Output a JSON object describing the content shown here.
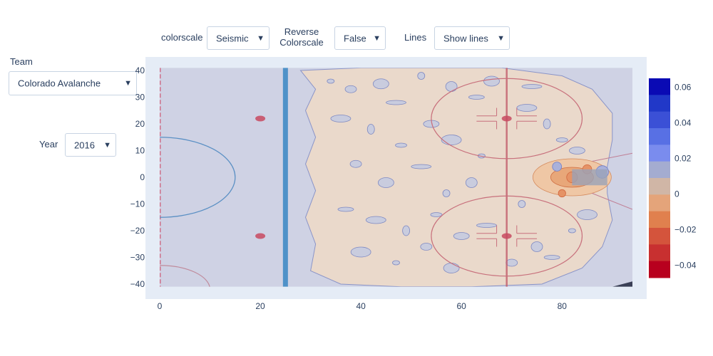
{
  "controls": {
    "team": {
      "label": "Team",
      "value": "Colorado Avalanche"
    },
    "year": {
      "label": "Year",
      "value": "2016"
    },
    "colorscale": {
      "label": "colorscale",
      "value": "Seismic"
    },
    "reverse": {
      "label_line1": "Reverse",
      "label_line2": "Colorscale",
      "value": "False"
    },
    "lines": {
      "label": "Lines",
      "value": "Show lines"
    },
    "caret": "▼"
  },
  "chart_data": {
    "type": "contour",
    "title": "",
    "xlabel": "",
    "ylabel": "",
    "xlim": [
      -3,
      94
    ],
    "ylim": [
      -43,
      43
    ],
    "x_ticks": [
      0,
      20,
      40,
      60,
      80
    ],
    "y_ticks": [
      40,
      30,
      20,
      10,
      0,
      -10,
      -20,
      -30,
      -40
    ],
    "y_tick_labels": [
      "40",
      "30",
      "20",
      "10",
      "0",
      "−10",
      "−20",
      "−30",
      "−40"
    ],
    "background_color": "#e5ecf6",
    "colorbar": {
      "range": [
        -0.047,
        0.065
      ],
      "ticks": [
        0.06,
        0.04,
        0.02,
        0,
        -0.02,
        -0.04
      ],
      "tick_labels": [
        "0.06",
        "0.04",
        "0.02",
        "0",
        "−0.02",
        "−0.04"
      ],
      "colors": [
        "#0a0ab4",
        "#2138c8",
        "#3b50d6",
        "#5870e4",
        "#7a8cee",
        "#a4acd0",
        "#d0b6a6",
        "#e4a47a",
        "#e0804e",
        "#d4543c",
        "#c83030",
        "#b8001e"
      ]
    },
    "rink": {
      "goal_line_x": 0,
      "blue_line_x": 25,
      "red_line_x": 69,
      "crease_x": 89,
      "faceoff_circles": [
        {
          "x": 69,
          "y": 22
        },
        {
          "x": 69,
          "y": -22
        }
      ],
      "faceoff_dots": [
        {
          "x": 20,
          "y": 22
        },
        {
          "x": 20,
          "y": -22
        },
        {
          "x": 69,
          "y": 22
        },
        {
          "x": 69,
          "y": -22
        }
      ],
      "center_circle": {
        "x": 0,
        "y": 0,
        "r": 15
      }
    },
    "density_region_note": "warm tan region spans x≈27..90 with blue (positive) and orange (negative) pockets; strongest cluster near x≈80..90, y≈-5..5",
    "hotspots": [
      {
        "x": 82,
        "y": 0,
        "value": -0.03
      },
      {
        "x": 85,
        "y": 3,
        "value": -0.02
      },
      {
        "x": 88,
        "y": 2,
        "value": 0.04
      },
      {
        "x": 79,
        "y": 4,
        "value": 0.02
      },
      {
        "x": 80,
        "y": -6,
        "value": -0.01
      }
    ]
  }
}
